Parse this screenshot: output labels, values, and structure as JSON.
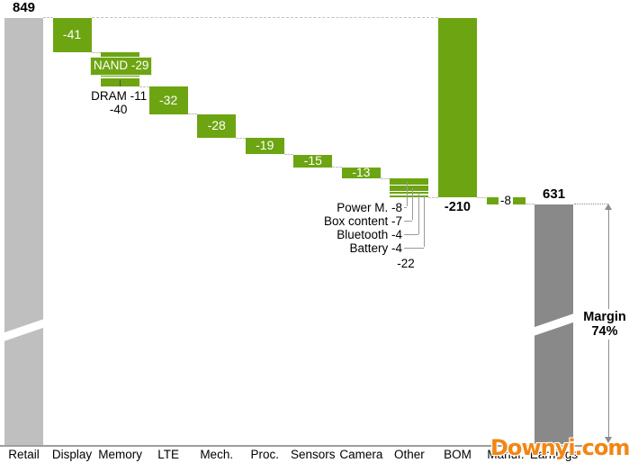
{
  "chart_data": {
    "type": "waterfall",
    "title": "",
    "start_value": 849,
    "end_value": 631,
    "categories": [
      "Retail",
      "Display",
      "Memory",
      "LTE",
      "Mech.",
      "Proc.",
      "Sensors",
      "Camera",
      "Other",
      "BOM",
      "Manuf.",
      "Earnings"
    ],
    "columns": [
      {
        "name": "Retail",
        "role": "start_total",
        "value": 849,
        "label": "849",
        "label_pos": "above",
        "bar_color": "gray_light",
        "broken": true
      },
      {
        "name": "Display",
        "role": "delta",
        "value": -41,
        "label": "-41",
        "label_pos": "inside"
      },
      {
        "name": "Memory",
        "role": "delta",
        "value": -40,
        "label": "-40",
        "label_pos": "below",
        "segments": [
          {
            "name": "NAND",
            "value": -29,
            "label": "NAND -29",
            "label_style": "inside_box"
          },
          {
            "name": "DRAM",
            "value": -11,
            "label": "DRAM -11",
            "label_style": "callout_below"
          }
        ]
      },
      {
        "name": "LTE",
        "role": "delta",
        "value": -32,
        "label": "-32",
        "label_pos": "inside"
      },
      {
        "name": "Mech.",
        "role": "delta",
        "value": -28,
        "label": "-28",
        "label_pos": "inside"
      },
      {
        "name": "Proc.",
        "role": "delta",
        "value": -19,
        "label": "-19",
        "label_pos": "inside"
      },
      {
        "name": "Sensors",
        "role": "delta",
        "value": -15,
        "label": "-15",
        "label_pos": "inside"
      },
      {
        "name": "Camera",
        "role": "delta",
        "value": -13,
        "label": "-13",
        "label_pos": "inside"
      },
      {
        "name": "Other",
        "role": "delta",
        "value": -22,
        "label": "-22",
        "label_pos": "below_callouts",
        "segments": [
          {
            "name": "Power M.",
            "value": -8,
            "label": "Power M. -8"
          },
          {
            "name": "Box content",
            "value": -7,
            "label": "Box content -7"
          },
          {
            "name": "Bluetooth",
            "value": -4,
            "label": "Bluetooth -4"
          },
          {
            "name": "Battery",
            "value": -4,
            "label": "Battery -4"
          }
        ]
      },
      {
        "name": "BOM",
        "role": "subtotal",
        "value": -210,
        "label": "-210",
        "label_pos": "below_bold"
      },
      {
        "name": "Manuf.",
        "role": "delta",
        "value": -8,
        "label": "-8",
        "label_pos": "inline_gap"
      },
      {
        "name": "Earnings",
        "role": "end_total",
        "value": 631,
        "label": "631",
        "label_pos": "above",
        "bar_color": "gray_dark",
        "broken": true
      }
    ],
    "annotations": {
      "margin_label": "Margin",
      "margin_value": "74%",
      "memory_total": "-40",
      "other_total": "-22"
    },
    "colors": {
      "delta_bar": "#6DA512",
      "start_bar": "#BFBFBF",
      "end_bar": "#898989",
      "connector": "#C2C2C2",
      "arrow": "#8C8C8C",
      "text": "#000000",
      "bar_label_text": "#FFFFFF",
      "watermark": "#F28613"
    },
    "axis": {
      "top_value": 849,
      "baseline": true,
      "broken_bars": [
        "Retail",
        "Earnings"
      ],
      "grid": false,
      "legend": false
    }
  },
  "watermark": {
    "text": "Downyi.com"
  }
}
